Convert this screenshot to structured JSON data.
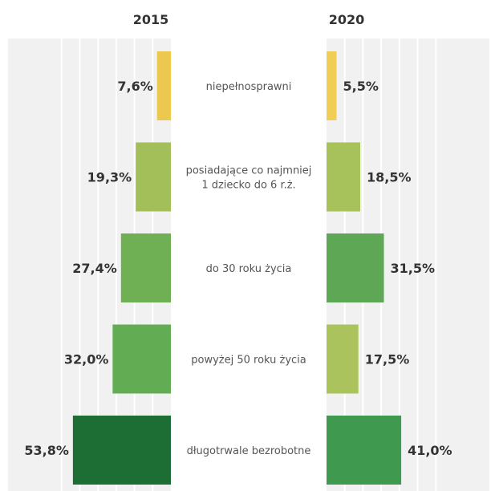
{
  "chart_data": {
    "type": "bar",
    "orientation": "horizontal",
    "layout": "butterfly",
    "categories": [
      "niepełnosprawni",
      "posiadające co najmniej 1 dziecko do 6 r.ż.",
      "do 30 roku życia",
      "powyżej 50 roku życia",
      "długotrwale bezrobotne"
    ],
    "category_lines": [
      [
        "niepełnosprawni"
      ],
      [
        "posiadające co najmniej",
        "1 dziecko do 6 r.ż."
      ],
      [
        "do 30 roku życia"
      ],
      [
        "powyżej 50 roku życia"
      ],
      [
        "długotrwale bezrobotne"
      ]
    ],
    "series": [
      {
        "name": "2015",
        "values": [
          7.6,
          19.3,
          27.4,
          32.0,
          53.8
        ],
        "labels": [
          "7,6%",
          "19,3%",
          "27,4%",
          "32,0%",
          "53,8%"
        ],
        "colors": [
          "#edc84f",
          "#a3bf59",
          "#6fb055",
          "#62ad53",
          "#1d6e35"
        ]
      },
      {
        "name": "2020",
        "values": [
          5.5,
          18.5,
          31.5,
          17.5,
          41.0
        ],
        "labels": [
          "5,5%",
          "18,5%",
          "31,5%",
          "17,5%",
          "41,0%"
        ],
        "colors": [
          "#f0cd55",
          "#a7c15b",
          "#5da755",
          "#aac35c",
          "#3f9a4f"
        ]
      }
    ],
    "xlim": [
      0,
      60
    ],
    "grid": true,
    "colors": {
      "plot_background": "#f1f1f1",
      "gridline": "#ffffff",
      "text": "#333333",
      "category_text": "#555555"
    }
  }
}
